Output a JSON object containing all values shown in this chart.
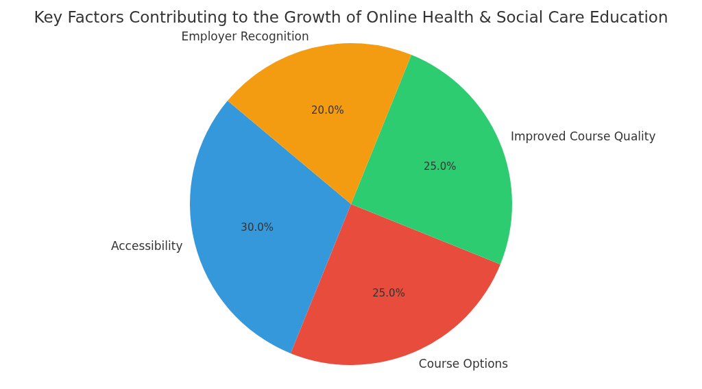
{
  "chart_data": {
    "type": "pie",
    "title": "Key Factors Contributing to the Growth of Online Health & Social Care Education",
    "categories": [
      "Accessibility",
      "Course Options",
      "Improved Course Quality",
      "Employer Recognition"
    ],
    "values": [
      30,
      25,
      25,
      20
    ],
    "colors": [
      "#3498db",
      "#e74c3c",
      "#2ecc71",
      "#f39c12"
    ],
    "value_labels": [
      "30.0%",
      "25.0%",
      "25.0%",
      "20.0%"
    ],
    "legend": false
  }
}
